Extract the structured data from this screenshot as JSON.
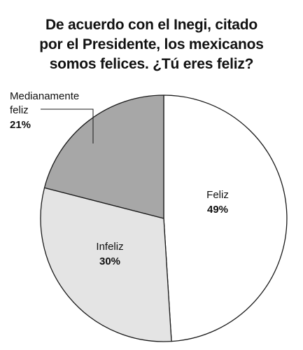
{
  "chart_data": {
    "type": "pie",
    "title_lines": [
      "De acuerdo con el Inegi, citado",
      "por el Presidente, los mexicanos",
      "somos felices. ¿Tú eres feliz?"
    ],
    "slices": [
      {
        "label": "Feliz",
        "value": 49,
        "display": "49%",
        "color": "#ffffff"
      },
      {
        "label": "Infeliz",
        "value": 30,
        "display": "30%",
        "color": "#e4e4e4"
      },
      {
        "label_lines": [
          "Medianamente",
          "feliz"
        ],
        "value": 21,
        "display": "21%",
        "color": "#a7a7a7"
      }
    ],
    "start": "top",
    "direction": "clockwise",
    "legend": "none",
    "stroke_color": "#1a1a1a"
  }
}
